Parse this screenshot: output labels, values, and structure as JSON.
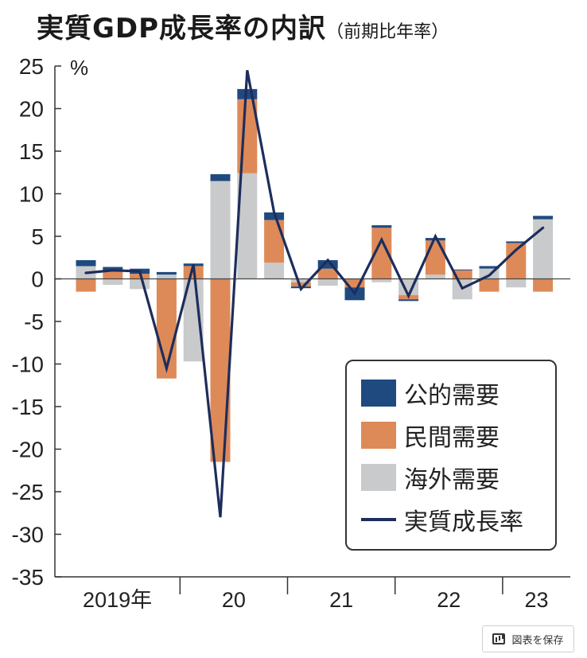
{
  "title": {
    "main": "実質GDP成長率の内訳",
    "sub": "（前期比年率）"
  },
  "save_button": {
    "label": "図表を保存",
    "icon": "chart-icon"
  },
  "colors": {
    "public": "#1f4a80",
    "private": "#de8a58",
    "overseas": "#c8cacb",
    "line": "#1d2d5c",
    "axis": "#333333"
  },
  "chart_data": {
    "type": "bar",
    "stacked": true,
    "unit_label": "%",
    "ylim": [
      -35,
      25
    ],
    "yticks": [
      25,
      20,
      15,
      10,
      5,
      0,
      -5,
      -10,
      -15,
      -20,
      -25,
      -30,
      -35
    ],
    "ytick_labels": [
      "25",
      "20",
      "15",
      "10",
      "5",
      "0",
      "-5",
      "-10",
      "-15",
      "-20",
      "-25",
      "-30",
      "-35"
    ],
    "year_labels": [
      {
        "label": "2019年",
        "start": 0,
        "end": 3
      },
      {
        "label": "20",
        "start": 4,
        "end": 7
      },
      {
        "label": "21",
        "start": 8,
        "end": 11
      },
      {
        "label": "22",
        "start": 12,
        "end": 15
      },
      {
        "label": "23",
        "start": 16,
        "end": 17
      }
    ],
    "categories": [
      "2019Q1",
      "2019Q2",
      "2019Q3",
      "2019Q4",
      "2020Q1",
      "2020Q2",
      "2020Q3",
      "2020Q4",
      "2021Q1",
      "2021Q2",
      "2021Q3",
      "2021Q4",
      "2022Q1",
      "2022Q2",
      "2022Q3",
      "2022Q4",
      "2023Q1",
      "2023Q2"
    ],
    "series": [
      {
        "name": "公的需要",
        "key": "public",
        "values": [
          0.7,
          0.4,
          0.6,
          0.3,
          0.3,
          0.8,
          1.2,
          0.9,
          -0.2,
          1.0,
          -1.5,
          0.3,
          -0.2,
          0.3,
          0.1,
          0.3,
          0.2,
          0.4
        ]
      },
      {
        "name": "民間需要",
        "key": "private",
        "values": [
          -1.5,
          1.0,
          0.6,
          -11.7,
          1.5,
          -21.5,
          8.7,
          5.0,
          -0.5,
          1.2,
          -1.0,
          6.0,
          -0.5,
          4.0,
          1.0,
          -1.5,
          4.2,
          -1.5
        ]
      },
      {
        "name": "海外需要",
        "key": "overseas",
        "values": [
          1.5,
          -0.7,
          -1.2,
          0.5,
          -9.7,
          11.5,
          12.4,
          1.9,
          -0.4,
          -0.8,
          0.0,
          -0.4,
          -1.9,
          0.5,
          -2.4,
          1.2,
          -1.0,
          7.0
        ]
      }
    ],
    "line": {
      "name": "実質成長率",
      "values": [
        0.7,
        1.0,
        0.9,
        -10.5,
        1.7,
        -28.0,
        24.5,
        7.8,
        -1.2,
        2.2,
        -1.7,
        4.6,
        -2.0,
        5.0,
        -1.1,
        0.4,
        3.4,
        6.0
      ]
    },
    "legend": [
      "公的需要",
      "民間需要",
      "海外需要",
      "実質成長率"
    ],
    "legend_position": "bottom-right"
  }
}
